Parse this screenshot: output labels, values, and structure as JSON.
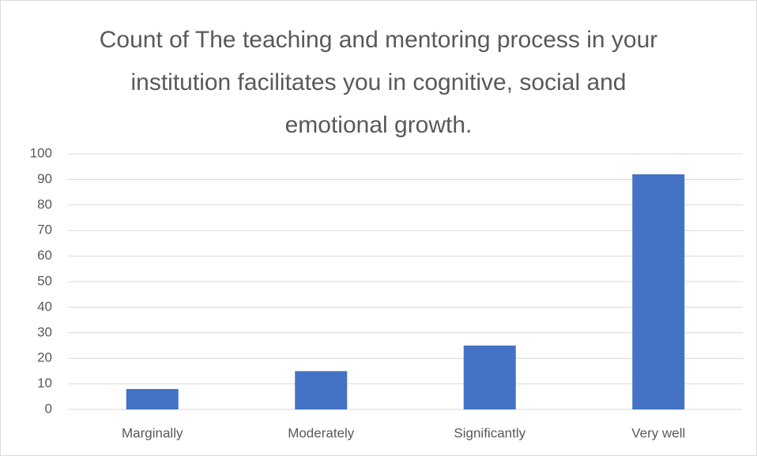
{
  "chart_data": {
    "type": "bar",
    "title": "Count of The teaching and mentoring process in your institution facilitates you in cognitive, social and emotional growth.",
    "categories": [
      "Marginally",
      "Moderately",
      "Significantly",
      "Very well"
    ],
    "values": [
      8,
      15,
      25,
      92
    ],
    "color": "#4472c4",
    "ylim": [
      0,
      100
    ],
    "yticks": [
      0,
      10,
      20,
      30,
      40,
      50,
      60,
      70,
      80,
      90,
      100
    ],
    "grid": true
  }
}
